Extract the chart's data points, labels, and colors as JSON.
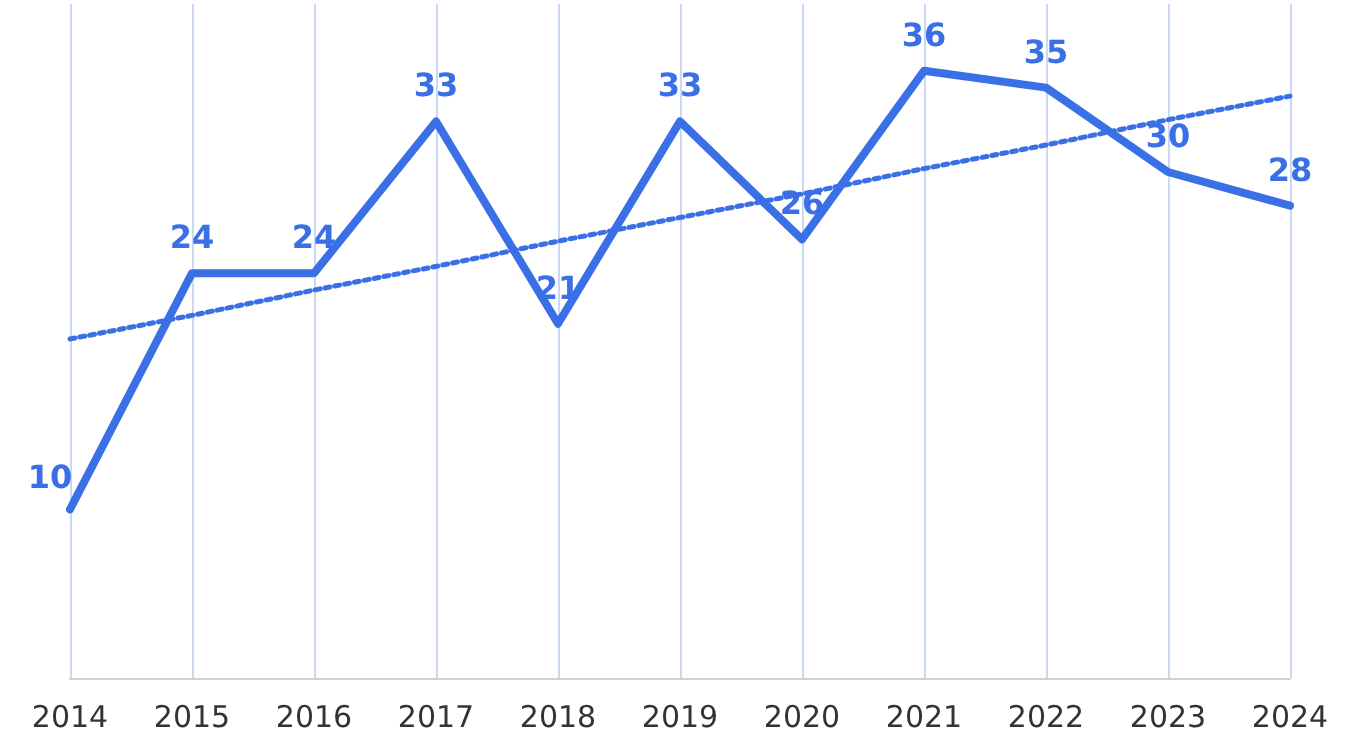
{
  "chart_data": {
    "type": "line",
    "categories": [
      "2014",
      "2015",
      "2016",
      "2017",
      "2018",
      "2019",
      "2020",
      "2021",
      "2022",
      "2023",
      "2024"
    ],
    "series": [
      {
        "color": "#3b6fe6",
        "values": [
          10,
          24,
          24,
          33,
          21,
          33,
          26,
          36,
          35,
          30,
          28
        ],
        "value_labels": [
          "10",
          "24",
          "24",
          "33",
          "21",
          "33",
          "26",
          "36",
          "35",
          "30",
          "28"
        ]
      },
      {
        "type": "line",
        "line_style": "dotted",
        "color": "#3b6fe6",
        "values": [
          20.1,
          21.5,
          23.0,
          24.4,
          25.9,
          27.3,
          28.7,
          30.2,
          31.6,
          33.1,
          34.5
        ]
      }
    ],
    "grid": "x",
    "marker": "none",
    "line_style": "solid"
  }
}
